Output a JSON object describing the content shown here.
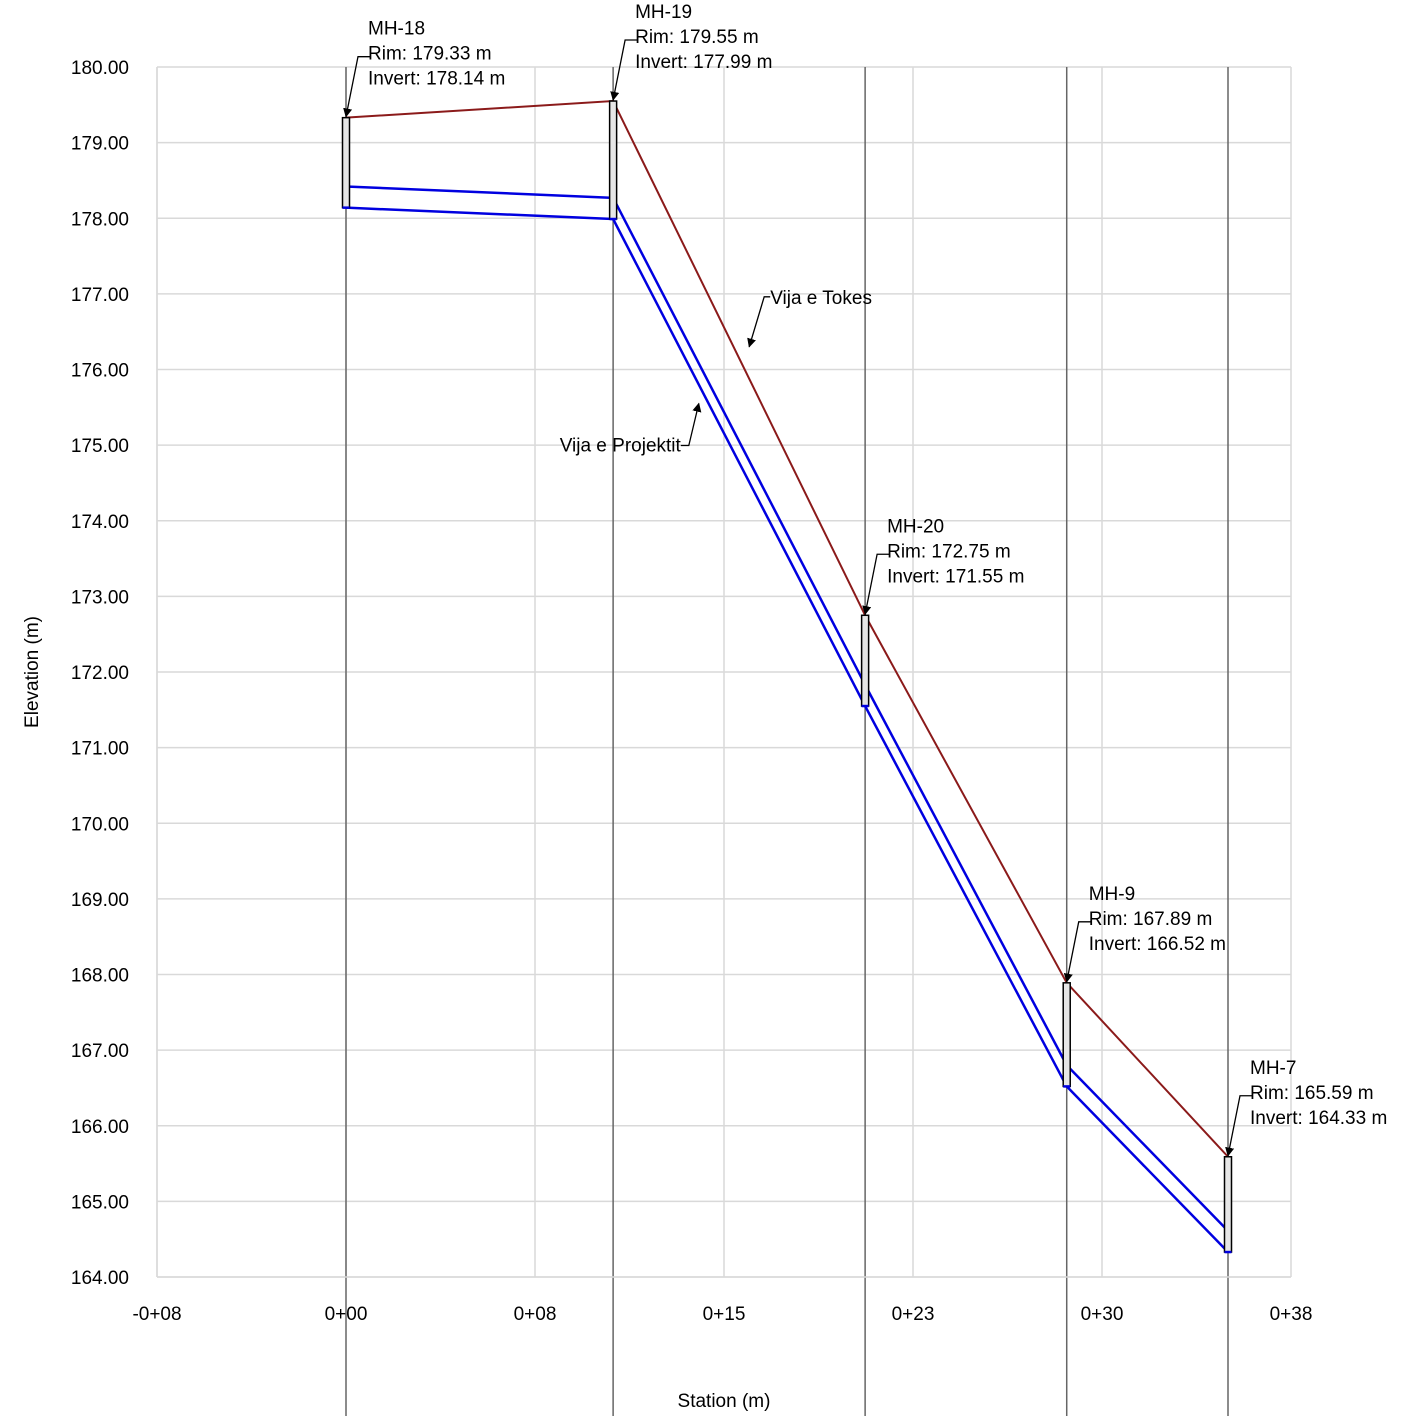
{
  "chart_data": {
    "type": "line",
    "xlabel": "Station (m)",
    "ylabel": "Elevation (m)",
    "xlim": [
      -7.5,
      37.5
    ],
    "ylim": [
      164.0,
      180.0
    ],
    "x_ticks": [
      {
        "value": -7.5,
        "label": "-0+08"
      },
      {
        "value": 0,
        "label": "0+00"
      },
      {
        "value": 7.5,
        "label": "0+08"
      },
      {
        "value": 15,
        "label": "0+15"
      },
      {
        "value": 22.5,
        "label": "0+23"
      },
      {
        "value": 30,
        "label": "0+30"
      },
      {
        "value": 37.5,
        "label": "0+38"
      }
    ],
    "y_ticks": [
      {
        "value": 180,
        "label": "180.00"
      },
      {
        "value": 179,
        "label": "179.00"
      },
      {
        "value": 178,
        "label": "178.00"
      },
      {
        "value": 177,
        "label": "177.00"
      },
      {
        "value": 176,
        "label": "176.00"
      },
      {
        "value": 175,
        "label": "175.00"
      },
      {
        "value": 174,
        "label": "174.00"
      },
      {
        "value": 173,
        "label": "173.00"
      },
      {
        "value": 172,
        "label": "172.00"
      },
      {
        "value": 171,
        "label": "171.00"
      },
      {
        "value": 170,
        "label": "170.00"
      },
      {
        "value": 169,
        "label": "169.00"
      },
      {
        "value": 168,
        "label": "168.00"
      },
      {
        "value": 167,
        "label": "167.00"
      },
      {
        "value": 166,
        "label": "166.00"
      },
      {
        "value": 165,
        "label": "165.00"
      },
      {
        "value": 164,
        "label": "164.00"
      }
    ],
    "grid": true,
    "manholes": [
      {
        "station": 0.0,
        "name": "MH-18",
        "rim": 179.33,
        "invert": 178.14,
        "rim_label": "Rim: 179.33 m",
        "invert_label": "Invert: 178.14 m"
      },
      {
        "station": 10.6,
        "name": "MH-19",
        "rim": 179.55,
        "invert": 177.99,
        "rim_label": "Rim: 179.55 m",
        "invert_label": "Invert: 177.99 m"
      },
      {
        "station": 20.6,
        "name": "MH-20",
        "rim": 172.75,
        "invert": 171.55,
        "rim_label": "Rim: 172.75 m",
        "invert_label": "Invert: 171.55 m"
      },
      {
        "station": 28.6,
        "name": "MH-9",
        "rim": 167.89,
        "invert": 166.52,
        "rim_label": "Rim: 167.89 m",
        "invert_label": "Invert: 166.52 m"
      },
      {
        "station": 35.0,
        "name": "MH-7",
        "rim": 165.59,
        "invert": 164.33,
        "rim_label": "Rim: 165.59 m",
        "invert_label": "Invert: 164.33 m"
      }
    ],
    "pipe_diameter": 0.28,
    "series": [
      {
        "name": "Vija e Tokes",
        "color": "#8b1a1a",
        "x": [
          0.0,
          10.6,
          20.6,
          28.6,
          35.0
        ],
        "y": [
          179.33,
          179.55,
          172.75,
          167.89,
          165.59
        ]
      },
      {
        "name": "Vija e Projektit",
        "color": "#0000e0",
        "x": [
          0.0,
          10.6,
          10.6,
          20.6,
          20.6,
          28.6,
          28.6,
          35.0
        ],
        "y": [
          178.14,
          177.99,
          177.99,
          171.55,
          171.55,
          166.52,
          166.52,
          164.33
        ]
      }
    ],
    "annotations": [
      {
        "text": "Vija e Tokes",
        "x": 16.0,
        "y": 176.3
      },
      {
        "text": "Vija e Projektit",
        "x": 14.0,
        "y": 175.55
      }
    ]
  }
}
